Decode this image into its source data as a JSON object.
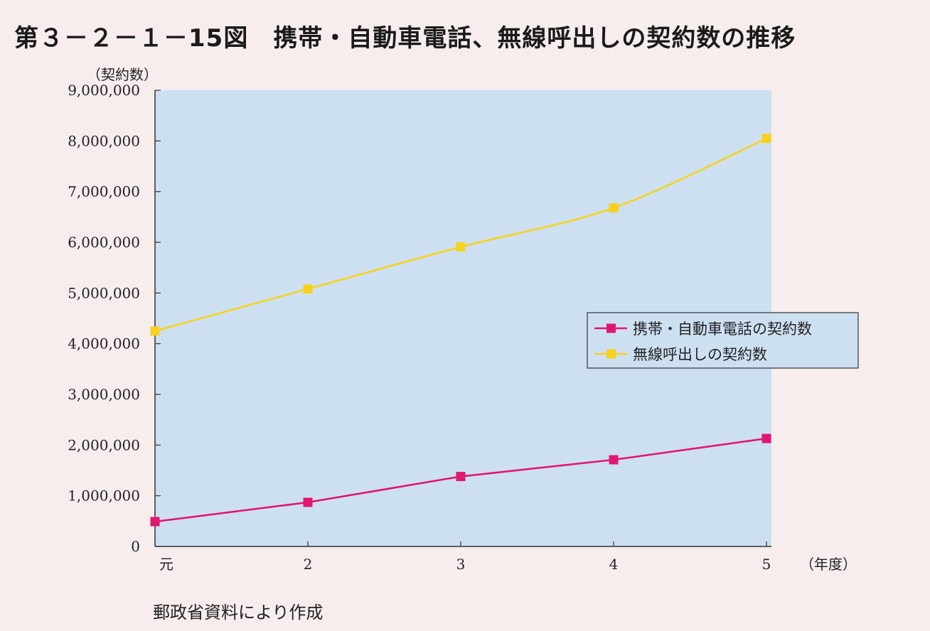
{
  "figure": {
    "title": "第３－２－１－15図　携帯・自動車電話、無線呼出しの契約数の推移",
    "source": "郵政省資料により作成"
  },
  "chart_data": {
    "type": "line",
    "ylabel": "（契約数）",
    "xlabel": "（年度）",
    "categories": [
      "元",
      "2",
      "3",
      "4",
      "5"
    ],
    "ylim": [
      0,
      9000000
    ],
    "yticks": [
      "0",
      "1,000,000",
      "2,000,000",
      "3,000,000",
      "4,000,000",
      "5,000,000",
      "6,000,000",
      "7,000,000",
      "8,000,000",
      "9,000,000"
    ],
    "plot_background": "#cde0f2",
    "legend_placement": "right-middle",
    "series": [
      {
        "name": "携帯・自動車電話の契約数",
        "color": "#e0186e",
        "values": [
          490000,
          870000,
          1380000,
          1710000,
          2130000
        ]
      },
      {
        "name": "無線呼出しの契約数",
        "color": "#f6d21e",
        "values": [
          4250000,
          5080000,
          5910000,
          6680000,
          8050000
        ]
      }
    ]
  }
}
